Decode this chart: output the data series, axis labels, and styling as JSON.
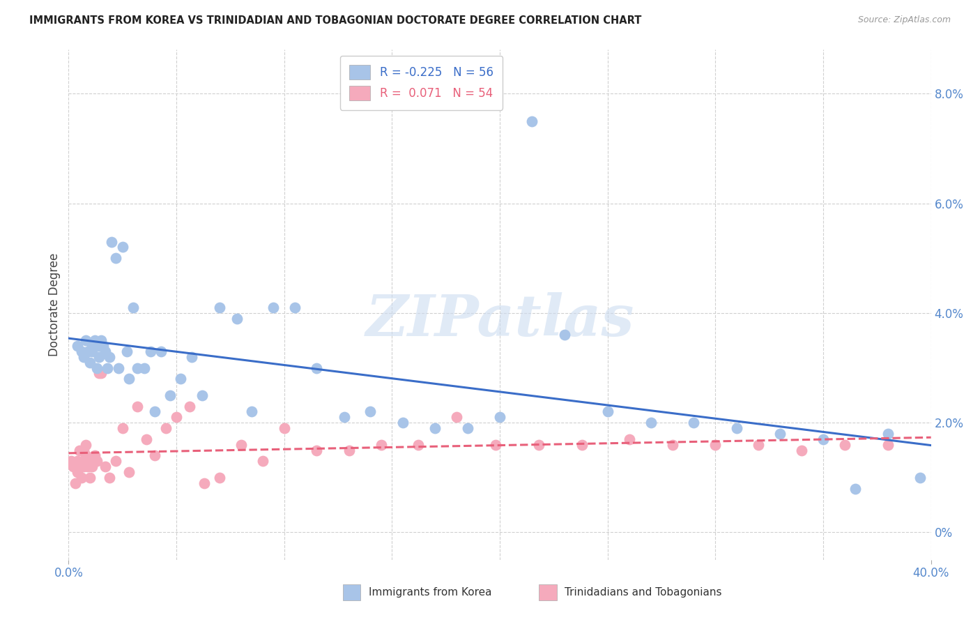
{
  "title": "IMMIGRANTS FROM KOREA VS TRINIDADIAN AND TOBAGONIAN DOCTORATE DEGREE CORRELATION CHART",
  "source": "Source: ZipAtlas.com",
  "ylabel": "Doctorate Degree",
  "ylabel_right_ticks": [
    "0%",
    "2.0%",
    "4.0%",
    "6.0%",
    "8.0%"
  ],
  "ylabel_right_vals": [
    0.0,
    0.02,
    0.04,
    0.06,
    0.08
  ],
  "xlim": [
    0.0,
    0.4
  ],
  "ylim": [
    -0.005,
    0.088
  ],
  "korea_R": -0.225,
  "korea_N": 56,
  "trini_R": 0.071,
  "trini_N": 54,
  "korea_color": "#a8c4e8",
  "trini_color": "#f5aabc",
  "korea_line_color": "#3a6dc8",
  "trini_line_color": "#e8607a",
  "background_color": "#ffffff",
  "watermark_text": "ZIPatlas",
  "grid_color": "#d0d0d0",
  "korea_x": [
    0.004,
    0.006,
    0.007,
    0.008,
    0.009,
    0.01,
    0.011,
    0.011,
    0.012,
    0.013,
    0.014,
    0.014,
    0.015,
    0.016,
    0.017,
    0.018,
    0.019,
    0.02,
    0.022,
    0.023,
    0.025,
    0.027,
    0.028,
    0.03,
    0.032,
    0.035,
    0.038,
    0.04,
    0.043,
    0.047,
    0.052,
    0.057,
    0.062,
    0.07,
    0.078,
    0.085,
    0.095,
    0.105,
    0.115,
    0.128,
    0.14,
    0.155,
    0.17,
    0.185,
    0.2,
    0.215,
    0.23,
    0.25,
    0.27,
    0.29,
    0.31,
    0.33,
    0.35,
    0.365,
    0.38,
    0.395
  ],
  "korea_y": [
    0.034,
    0.033,
    0.032,
    0.035,
    0.033,
    0.031,
    0.034,
    0.033,
    0.035,
    0.03,
    0.032,
    0.034,
    0.035,
    0.034,
    0.033,
    0.03,
    0.032,
    0.053,
    0.05,
    0.03,
    0.052,
    0.033,
    0.028,
    0.041,
    0.03,
    0.03,
    0.033,
    0.022,
    0.033,
    0.025,
    0.028,
    0.032,
    0.025,
    0.041,
    0.039,
    0.022,
    0.041,
    0.041,
    0.03,
    0.021,
    0.022,
    0.02,
    0.019,
    0.019,
    0.021,
    0.075,
    0.036,
    0.022,
    0.02,
    0.02,
    0.019,
    0.018,
    0.017,
    0.008,
    0.018,
    0.01
  ],
  "trini_x": [
    0.001,
    0.002,
    0.003,
    0.003,
    0.004,
    0.004,
    0.005,
    0.005,
    0.006,
    0.006,
    0.007,
    0.007,
    0.007,
    0.008,
    0.008,
    0.009,
    0.009,
    0.01,
    0.011,
    0.012,
    0.013,
    0.014,
    0.015,
    0.017,
    0.019,
    0.022,
    0.025,
    0.028,
    0.032,
    0.036,
    0.04,
    0.045,
    0.05,
    0.056,
    0.063,
    0.07,
    0.08,
    0.09,
    0.1,
    0.115,
    0.13,
    0.145,
    0.162,
    0.18,
    0.198,
    0.218,
    0.238,
    0.26,
    0.28,
    0.3,
    0.32,
    0.34,
    0.36,
    0.38
  ],
  "trini_y": [
    0.013,
    0.012,
    0.009,
    0.012,
    0.011,
    0.013,
    0.015,
    0.012,
    0.01,
    0.012,
    0.013,
    0.015,
    0.012,
    0.014,
    0.016,
    0.012,
    0.013,
    0.01,
    0.012,
    0.014,
    0.013,
    0.029,
    0.029,
    0.012,
    0.01,
    0.013,
    0.019,
    0.011,
    0.023,
    0.017,
    0.014,
    0.019,
    0.021,
    0.023,
    0.009,
    0.01,
    0.016,
    0.013,
    0.019,
    0.015,
    0.015,
    0.016,
    0.016,
    0.021,
    0.016,
    0.016,
    0.016,
    0.017,
    0.016,
    0.016,
    0.016,
    0.015,
    0.016,
    0.016
  ]
}
